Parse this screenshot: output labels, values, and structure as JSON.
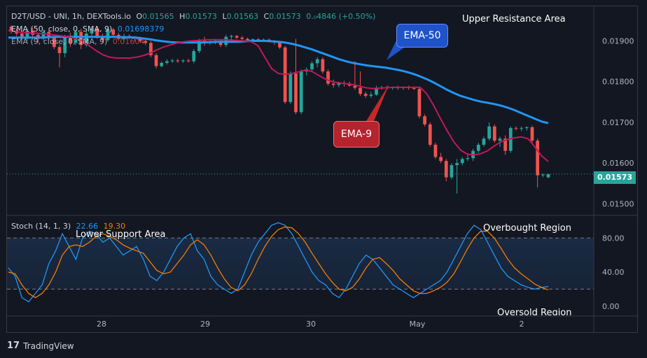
{
  "header": {
    "symbol": "D2T/USD - UNI, 1h, DEXTools.io",
    "o_label": "O",
    "o_value": "0.01565",
    "h_label": "H",
    "h_value": "0.01573",
    "l_label": "L",
    "l_value": "0.01563",
    "c_label": "C",
    "c_value": "0.01573",
    "change": "0.₀4846 (+0.50%)"
  },
  "indicators": {
    "ema50_label": "EMA (50, close, 0, SMA, 9)",
    "ema50_value": "0.01698379",
    "ema9_label": "EMA (9, close, 0, SMA, 9)",
    "ema9_value": "0.01604"
  },
  "annotations": {
    "upper_resistance": "Upper Resistance Area",
    "lower_support": "Lower Support Area",
    "overbought": "Overbought Region",
    "oversold": "Oversold Region",
    "ema50_callout": "EMA-50",
    "ema9_callout": "EMA-9"
  },
  "stoch": {
    "label": "Stoch (14, 1, 3)",
    "k_value": "22.66",
    "d_value": "19.30"
  },
  "last_price": "0.01573",
  "footer": {
    "brand": "TradingView",
    "logo": "17"
  },
  "colors": {
    "background": "#131722",
    "bull": "#26a69a",
    "bear": "#ef5350",
    "ema50": "#2196f3",
    "ema9": "#c2185b",
    "stoch_k": "#2196f3",
    "stoch_d": "#f57c00",
    "callout_blue": "#1e53c9",
    "callout_red": "#c62828"
  },
  "chart_data": [
    {
      "type": "candlestick",
      "title": "D2T/USD - UNI, 1h, DEXTools.io",
      "x_tick_labels": [
        "28",
        "29",
        "30",
        "May",
        "2"
      ],
      "y_ticks": [
        0.015,
        0.016,
        0.017,
        0.018,
        0.019
      ],
      "y_tick_labels": [
        "0.01500",
        "0.01600",
        "0.01700",
        "0.01800",
        "0.01900"
      ],
      "ylim": [
        0.01475,
        0.01985
      ],
      "candles": [
        [
          0.01935,
          0.01938,
          0.01918,
          0.01924
        ],
        [
          0.01924,
          0.0193,
          0.01912,
          0.01918
        ],
        [
          0.01918,
          0.01925,
          0.01905,
          0.0191
        ],
        [
          0.0191,
          0.0193,
          0.019,
          0.01925
        ],
        [
          0.01925,
          0.01932,
          0.0191,
          0.01915
        ],
        [
          0.01915,
          0.0192,
          0.01895,
          0.01905
        ],
        [
          0.01905,
          0.01928,
          0.019,
          0.01922
        ],
        [
          0.01922,
          0.01925,
          0.01902,
          0.01908
        ],
        [
          0.01908,
          0.01912,
          0.0188,
          0.01885
        ],
        [
          0.01885,
          0.0189,
          0.01835,
          0.0187
        ],
        [
          0.0187,
          0.01915,
          0.0186,
          0.0191
        ],
        [
          0.0191,
          0.0192,
          0.01885,
          0.01895
        ],
        [
          0.01895,
          0.01928,
          0.0189,
          0.01922
        ],
        [
          0.01922,
          0.0193,
          0.0188,
          0.0189
        ],
        [
          0.0189,
          0.01925,
          0.01885,
          0.01918
        ],
        [
          0.01918,
          0.01935,
          0.0191,
          0.0193
        ],
        [
          0.0193,
          0.01935,
          0.01905,
          0.01912
        ],
        [
          0.01912,
          0.01918,
          0.01896,
          0.01902
        ],
        [
          0.01902,
          0.01935,
          0.01898,
          0.01928
        ],
        [
          0.01928,
          0.01932,
          0.0191,
          0.01915
        ],
        [
          0.01915,
          0.0192,
          0.019,
          0.01905
        ],
        [
          0.01905,
          0.01918,
          0.019,
          0.01912
        ],
        [
          0.01912,
          0.01916,
          0.01904,
          0.01908
        ],
        [
          0.01908,
          0.01912,
          0.019,
          0.01906
        ],
        [
          0.01906,
          0.0191,
          0.01896,
          0.019
        ],
        [
          0.019,
          0.01905,
          0.0189,
          0.01895
        ],
        [
          0.01895,
          0.019,
          0.0186,
          0.01865
        ],
        [
          0.01865,
          0.0187,
          0.01832,
          0.01838
        ],
        [
          0.01838,
          0.0185,
          0.01835,
          0.01846
        ],
        [
          0.01846,
          0.01855,
          0.01842,
          0.0185
        ],
        [
          0.0185,
          0.01856,
          0.01846,
          0.01852
        ],
        [
          0.01852,
          0.01856,
          0.01846,
          0.0185
        ],
        [
          0.0185,
          0.01855,
          0.01846,
          0.01852
        ],
        [
          0.01852,
          0.01856,
          0.01847,
          0.0185
        ],
        [
          0.0185,
          0.0188,
          0.01845,
          0.01875
        ],
        [
          0.01875,
          0.01905,
          0.0187,
          0.019
        ],
        [
          0.019,
          0.0191,
          0.01888,
          0.01895
        ],
        [
          0.01895,
          0.01902,
          0.0189,
          0.01898
        ],
        [
          0.01898,
          0.01905,
          0.01892,
          0.019
        ],
        [
          0.019,
          0.01902,
          0.01885,
          0.0189
        ],
        [
          0.0189,
          0.01915,
          0.01885,
          0.0191
        ],
        [
          0.0191,
          0.01915,
          0.019,
          0.01912
        ],
        [
          0.01912,
          0.01915,
          0.01905,
          0.01908
        ],
        [
          0.01908,
          0.01912,
          0.01902,
          0.01905
        ],
        [
          0.01905,
          0.01908,
          0.01898,
          0.01902
        ],
        [
          0.01902,
          0.01906,
          0.01898,
          0.01904
        ],
        [
          0.01904,
          0.01907,
          0.019,
          0.01902
        ],
        [
          0.01902,
          0.01906,
          0.01898,
          0.01903
        ],
        [
          0.01903,
          0.01906,
          0.01898,
          0.019
        ],
        [
          0.019,
          0.01902,
          0.0189,
          0.01896
        ],
        [
          0.01896,
          0.019,
          0.0188,
          0.01884
        ],
        [
          0.01884,
          0.01888,
          0.01745,
          0.0175
        ],
        [
          0.0175,
          0.01825,
          0.01745,
          0.0182
        ],
        [
          0.0182,
          0.01905,
          0.0172,
          0.01725
        ],
        [
          0.01725,
          0.0183,
          0.0172,
          0.01825
        ],
        [
          0.01825,
          0.01835,
          0.01815,
          0.0183
        ],
        [
          0.0183,
          0.0185,
          0.01825,
          0.01845
        ],
        [
          0.01845,
          0.0186,
          0.01835,
          0.01855
        ],
        [
          0.01855,
          0.0186,
          0.0182,
          0.01825
        ],
        [
          0.01825,
          0.0183,
          0.0179,
          0.01795
        ],
        [
          0.01795,
          0.01805,
          0.01785,
          0.01792
        ],
        [
          0.01792,
          0.018,
          0.01786,
          0.01796
        ],
        [
          0.01796,
          0.01802,
          0.01788,
          0.01795
        ],
        [
          0.01795,
          0.018,
          0.01788,
          0.0179
        ],
        [
          0.0179,
          0.0185,
          0.0178,
          0.01785
        ],
        [
          0.01785,
          0.01825,
          0.01765,
          0.0177
        ],
        [
          0.0177,
          0.01775,
          0.0176,
          0.01765
        ],
        [
          0.01765,
          0.01775,
          0.0176,
          0.01768
        ],
        [
          0.01768,
          0.0179,
          0.01765,
          0.01785
        ],
        [
          0.01785,
          0.0179,
          0.0178,
          0.01786
        ],
        [
          0.01786,
          0.0179,
          0.0178,
          0.01784
        ],
        [
          0.01784,
          0.01788,
          0.0178,
          0.01786
        ],
        [
          0.01786,
          0.0179,
          0.0178,
          0.01784
        ],
        [
          0.01784,
          0.01788,
          0.0178,
          0.01786
        ],
        [
          0.01786,
          0.0179,
          0.0178,
          0.01784
        ],
        [
          0.01784,
          0.01788,
          0.0178,
          0.01782
        ],
        [
          0.01782,
          0.01786,
          0.0171,
          0.01715
        ],
        [
          0.01715,
          0.0172,
          0.0169,
          0.01695
        ],
        [
          0.01695,
          0.017,
          0.0164,
          0.01645
        ],
        [
          0.01645,
          0.0165,
          0.0161,
          0.01615
        ],
        [
          0.01615,
          0.01625,
          0.016,
          0.01605
        ],
        [
          0.01605,
          0.0161,
          0.01555,
          0.01565
        ],
        [
          0.01565,
          0.016,
          0.0156,
          0.01595
        ],
        [
          0.01595,
          0.0161,
          0.01525,
          0.016
        ],
        [
          0.016,
          0.01615,
          0.01595,
          0.0161
        ],
        [
          0.0161,
          0.0162,
          0.01605,
          0.01612
        ],
        [
          0.01612,
          0.01635,
          0.01605,
          0.0163
        ],
        [
          0.0163,
          0.0165,
          0.01625,
          0.01645
        ],
        [
          0.01645,
          0.01665,
          0.0164,
          0.0166
        ],
        [
          0.0166,
          0.017,
          0.01655,
          0.0169
        ],
        [
          0.0169,
          0.01695,
          0.0165,
          0.01655
        ],
        [
          0.01655,
          0.01665,
          0.0164,
          0.0166
        ],
        [
          0.0166,
          0.01668,
          0.0162,
          0.0163
        ],
        [
          0.0163,
          0.0169,
          0.01625,
          0.01686
        ],
        [
          0.01686,
          0.0169,
          0.0168,
          0.01685
        ],
        [
          0.01685,
          0.0169,
          0.01678,
          0.01686
        ],
        [
          0.01686,
          0.0169,
          0.0168,
          0.01688
        ],
        [
          0.01688,
          0.01692,
          0.0165,
          0.01655
        ],
        [
          0.01655,
          0.0166,
          0.0154,
          0.0157
        ],
        [
          0.0157,
          0.01574,
          0.01565,
          0.01572
        ],
        [
          0.01565,
          0.01573,
          0.01563,
          0.01573
        ]
      ],
      "ema50": [
        0.01908,
        0.01908,
        0.01908,
        0.01908,
        0.01908,
        0.01908,
        0.01909,
        0.0191,
        0.0191,
        0.0191,
        0.0191,
        0.0191,
        0.0191,
        0.0191,
        0.0191,
        0.0191,
        0.0191,
        0.01909,
        0.01909,
        0.01908,
        0.01906,
        0.01904,
        0.01901,
        0.01899,
        0.01897,
        0.01896,
        0.01896,
        0.01896,
        0.01896,
        0.01896,
        0.01897,
        0.01898,
        0.01898,
        0.01898,
        0.01898,
        0.01899,
        0.019,
        0.019,
        0.019,
        0.01899,
        0.01898,
        0.01896,
        0.01893,
        0.01889,
        0.01884,
        0.01879,
        0.01873,
        0.01867,
        0.01861,
        0.01855,
        0.0185,
        0.01846,
        0.01843,
        0.0184,
        0.01838,
        0.01836,
        0.01834,
        0.01831,
        0.01828,
        0.01824,
        0.01819,
        0.01813,
        0.01806,
        0.01798,
        0.01789,
        0.0178,
        0.01772,
        0.01765,
        0.0176,
        0.01755,
        0.01751,
        0.01748,
        0.01745,
        0.01741,
        0.01736,
        0.0173,
        0.01723,
        0.01716,
        0.01709,
        0.01702,
        0.01698
      ],
      "ema9": [
        0.01925,
        0.01923,
        0.01921,
        0.0192,
        0.01919,
        0.01918,
        0.01916,
        0.01914,
        0.01912,
        0.0191,
        0.01905,
        0.01898,
        0.01888,
        0.01876,
        0.01866,
        0.0186,
        0.01858,
        0.01858,
        0.01858,
        0.0186,
        0.01864,
        0.0187,
        0.01878,
        0.01885,
        0.0189,
        0.01895,
        0.01898,
        0.019,
        0.01901,
        0.01902,
        0.01903,
        0.01903,
        0.01903,
        0.01902,
        0.01901,
        0.019,
        0.01898,
        0.01888,
        0.0186,
        0.01832,
        0.0182,
        0.01818,
        0.0182,
        0.01824,
        0.01828,
        0.01825,
        0.01815,
        0.01806,
        0.018,
        0.01797,
        0.01795,
        0.01793,
        0.01789,
        0.01785,
        0.01783,
        0.01784,
        0.01785,
        0.01786,
        0.01786,
        0.01786,
        0.01786,
        0.01786,
        0.0177,
        0.01742,
        0.0171,
        0.0168,
        0.01652,
        0.01632,
        0.01622,
        0.0162,
        0.01623,
        0.0163,
        0.01642,
        0.01652,
        0.01658,
        0.01662,
        0.01664,
        0.0166,
        0.0164,
        0.01618,
        0.01604
      ]
    },
    {
      "type": "line",
      "title": "Stoch (14, 1, 3)",
      "ylim": [
        -10,
        105
      ],
      "y_ticks": [
        0,
        40,
        80
      ],
      "y_tick_labels": [
        "0.00",
        "40.00",
        "80.00"
      ],
      "band": [
        20,
        80
      ],
      "series": [
        {
          "name": "%K",
          "values": [
            45,
            35,
            10,
            5,
            15,
            25,
            50,
            65,
            85,
            70,
            55,
            80,
            88,
            85,
            75,
            80,
            70,
            60,
            65,
            70,
            55,
            35,
            30,
            40,
            55,
            70,
            80,
            85,
            65,
            55,
            35,
            25,
            20,
            15,
            20,
            40,
            60,
            75,
            85,
            95,
            98,
            95,
            85,
            70,
            55,
            40,
            30,
            25,
            15,
            10,
            20,
            35,
            50,
            60,
            55,
            45,
            35,
            25,
            20,
            15,
            10,
            15,
            20,
            25,
            30,
            40,
            55,
            70,
            85,
            95,
            90,
            75,
            60,
            45,
            35,
            30,
            25,
            22,
            20,
            22,
            23
          ]
        },
        {
          "name": "%D",
          "values": [
            40,
            38,
            25,
            15,
            10,
            15,
            25,
            40,
            60,
            70,
            72,
            70,
            75,
            82,
            85,
            82,
            78,
            72,
            68,
            65,
            62,
            52,
            42,
            38,
            40,
            50,
            60,
            72,
            78,
            72,
            60,
            45,
            32,
            22,
            18,
            25,
            38,
            55,
            70,
            82,
            90,
            93,
            92,
            85,
            75,
            62,
            50,
            38,
            28,
            20,
            18,
            22,
            32,
            45,
            55,
            57,
            50,
            42,
            32,
            25,
            18,
            15,
            15,
            18,
            22,
            28,
            38,
            52,
            67,
            80,
            88,
            88,
            80,
            68,
            55,
            45,
            38,
            32,
            26,
            22,
            19
          ]
        }
      ],
      "annotations": [
        "Overbought Region",
        "Oversold Region",
        "Lower Support Area"
      ]
    }
  ]
}
